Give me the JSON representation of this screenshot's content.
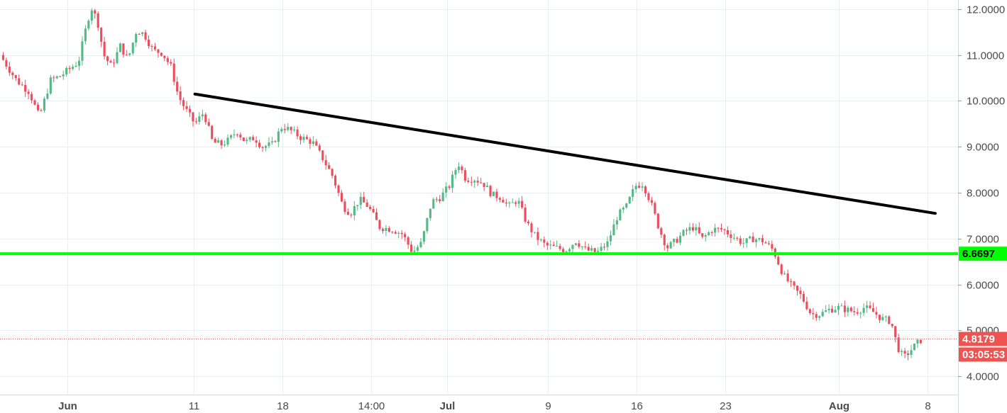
{
  "chart_data": {
    "type": "candlestick",
    "x_tick_labels": [
      {
        "label": "Jun",
        "bold": true,
        "day": 0
      },
      {
        "label": "11",
        "bold": false,
        "day": 10
      },
      {
        "label": "18",
        "bold": false,
        "day": 17
      },
      {
        "label": "14:00",
        "bold": false,
        "day": 24
      },
      {
        "label": "Jul",
        "bold": true,
        "day": 30
      },
      {
        "label": "9",
        "bold": false,
        "day": 38
      },
      {
        "label": "16",
        "bold": false,
        "day": 45
      },
      {
        "label": "23",
        "bold": false,
        "day": 52
      },
      {
        "label": "Aug",
        "bold": true,
        "day": 61
      },
      {
        "label": "8",
        "bold": false,
        "day": 68
      }
    ],
    "y_tick_labels": [
      "4.0000",
      "5.0000",
      "6.0000",
      "7.0000",
      "8.0000",
      "9.0000",
      "10.0000",
      "11.0000",
      "12.0000"
    ],
    "y_range": [
      3.6,
      12.2
    ],
    "x_range_days": [
      -5.3,
      70.4
    ],
    "price_anchors": [
      [
        -5.3,
        11.0
      ],
      [
        -4.0,
        10.45
      ],
      [
        -3.0,
        10.2
      ],
      [
        -2.2,
        9.65
      ],
      [
        -1.3,
        10.45
      ],
      [
        -0.5,
        10.55
      ],
      [
        0.3,
        10.72
      ],
      [
        0.9,
        10.85
      ],
      [
        1.5,
        11.6
      ],
      [
        1.9,
        12.05
      ],
      [
        2.4,
        11.75
      ],
      [
        2.9,
        11.0
      ],
      [
        3.5,
        10.75
      ],
      [
        4.2,
        11.2
      ],
      [
        4.8,
        10.9
      ],
      [
        5.5,
        11.55
      ],
      [
        6.1,
        11.45
      ],
      [
        6.8,
        11.1
      ],
      [
        7.5,
        11.05
      ],
      [
        8.2,
        10.75
      ],
      [
        8.8,
        10.1
      ],
      [
        9.4,
        9.8
      ],
      [
        10.1,
        9.5
      ],
      [
        10.8,
        9.75
      ],
      [
        11.5,
        9.1
      ],
      [
        12.2,
        9.05
      ],
      [
        12.8,
        9.15
      ],
      [
        13.4,
        9.35
      ],
      [
        14.1,
        9.1
      ],
      [
        14.8,
        9.2
      ],
      [
        15.4,
        9.0
      ],
      [
        16.2,
        9.05
      ],
      [
        17.0,
        9.45
      ],
      [
        17.7,
        9.35
      ],
      [
        18.5,
        9.2
      ],
      [
        19.4,
        9.1
      ],
      [
        20.2,
        8.75
      ],
      [
        21.0,
        8.35
      ],
      [
        21.8,
        7.7
      ],
      [
        22.4,
        7.55
      ],
      [
        23.1,
        7.85
      ],
      [
        23.8,
        7.7
      ],
      [
        24.7,
        7.25
      ],
      [
        25.7,
        7.2
      ],
      [
        26.5,
        7.1
      ],
      [
        27.3,
        6.7
      ],
      [
        28.0,
        6.9
      ],
      [
        28.8,
        7.8
      ],
      [
        29.5,
        7.9
      ],
      [
        30.2,
        8.15
      ],
      [
        30.9,
        8.65
      ],
      [
        31.5,
        8.3
      ],
      [
        32.2,
        8.3
      ],
      [
        32.9,
        8.2
      ],
      [
        33.6,
        7.95
      ],
      [
        34.3,
        7.9
      ],
      [
        34.9,
        7.7
      ],
      [
        35.6,
        7.85
      ],
      [
        36.3,
        7.35
      ],
      [
        37.0,
        7.05
      ],
      [
        37.8,
        6.85
      ],
      [
        38.6,
        6.8
      ],
      [
        39.4,
        6.75
      ],
      [
        40.2,
        6.95
      ],
      [
        41.0,
        6.75
      ],
      [
        41.9,
        6.7
      ],
      [
        42.7,
        6.9
      ],
      [
        43.5,
        7.5
      ],
      [
        44.2,
        7.7
      ],
      [
        44.9,
        8.15
      ],
      [
        45.5,
        8.2
      ],
      [
        46.1,
        7.8
      ],
      [
        46.8,
        7.2
      ],
      [
        47.4,
        6.8
      ],
      [
        48.1,
        6.95
      ],
      [
        48.8,
        7.15
      ],
      [
        49.5,
        7.25
      ],
      [
        50.2,
        7.0
      ],
      [
        51.0,
        7.2
      ],
      [
        51.8,
        7.2
      ],
      [
        52.6,
        7.05
      ],
      [
        53.4,
        6.9
      ],
      [
        54.2,
        7.0
      ],
      [
        55.0,
        6.95
      ],
      [
        55.8,
        6.75
      ],
      [
        56.6,
        6.2
      ],
      [
        57.3,
        5.95
      ],
      [
        58.0,
        5.75
      ],
      [
        58.8,
        5.35
      ],
      [
        59.5,
        5.35
      ],
      [
        60.2,
        5.45
      ],
      [
        60.9,
        5.5
      ],
      [
        61.6,
        5.45
      ],
      [
        62.3,
        5.4
      ],
      [
        63.0,
        5.5
      ],
      [
        63.7,
        5.4
      ],
      [
        64.4,
        5.25
      ],
      [
        65.1,
        5.2
      ],
      [
        65.6,
        4.65
      ],
      [
        66.1,
        4.4
      ],
      [
        66.6,
        4.55
      ],
      [
        67.1,
        4.7
      ],
      [
        67.6,
        4.82
      ]
    ],
    "trendline": {
      "start": [
        10.1,
        10.15
      ],
      "end": [
        68.6,
        7.55
      ],
      "color": "#000000"
    },
    "support": {
      "value": 6.6697,
      "label": "6.6697",
      "color": "#00ff00"
    },
    "last_price": {
      "value": 4.8179,
      "label": "4.8179",
      "color": "#ef5350"
    },
    "countdown": {
      "label": "03:05:53",
      "color": "#ef5350"
    },
    "candle_up_color": "#53b987",
    "candle_down_color": "#eb4d5c",
    "grid": true,
    "grid_color": "#e9eef2"
  }
}
